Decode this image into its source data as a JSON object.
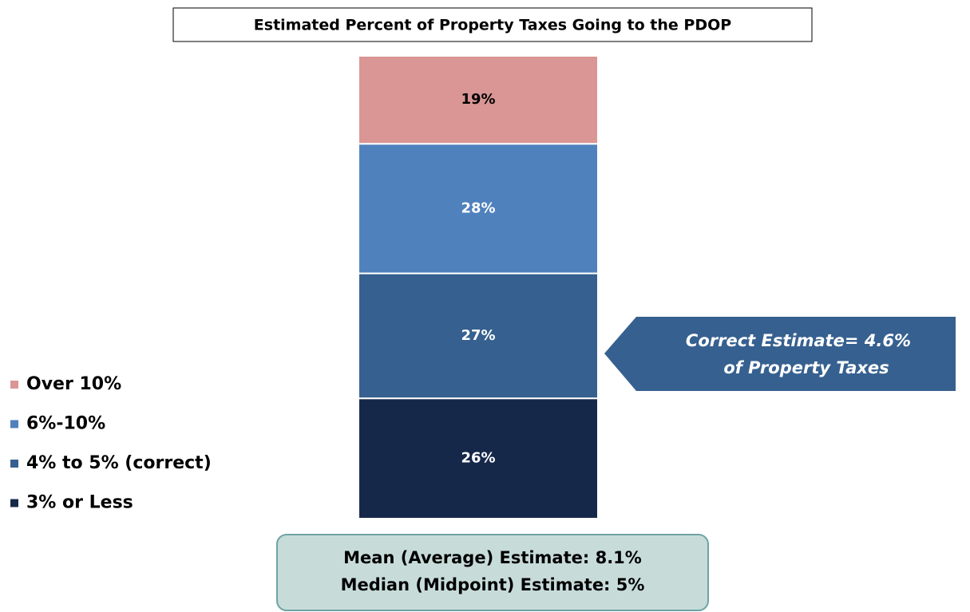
{
  "chart_data": {
    "type": "stacked_bar",
    "title": "Estimated Percent of Property Taxes Going to the PDOP",
    "series": [
      {
        "name": "3% or Less",
        "color": "#16284a",
        "values": [
          26
        ],
        "value_labels": [
          "26%"
        ]
      },
      {
        "name": "4% to 5% (correct)",
        "color": "#36608f",
        "values": [
          27
        ],
        "value_labels": [
          "27%"
        ]
      },
      {
        "name": "6%-10%",
        "color": "#4f81bd",
        "values": [
          28
        ],
        "value_labels": [
          "28%"
        ]
      },
      {
        "name": "Over 10%",
        "color": "#d99694",
        "values": [
          19
        ],
        "value_labels": [
          "19%"
        ]
      }
    ],
    "callout": [
      "Correct Estimate=  4.6%",
      "of Property Taxes"
    ],
    "summary": [
      "Mean (Average) Estimate:  8.1%",
      "Median (Midpoint) Estimate:  5%"
    ]
  }
}
